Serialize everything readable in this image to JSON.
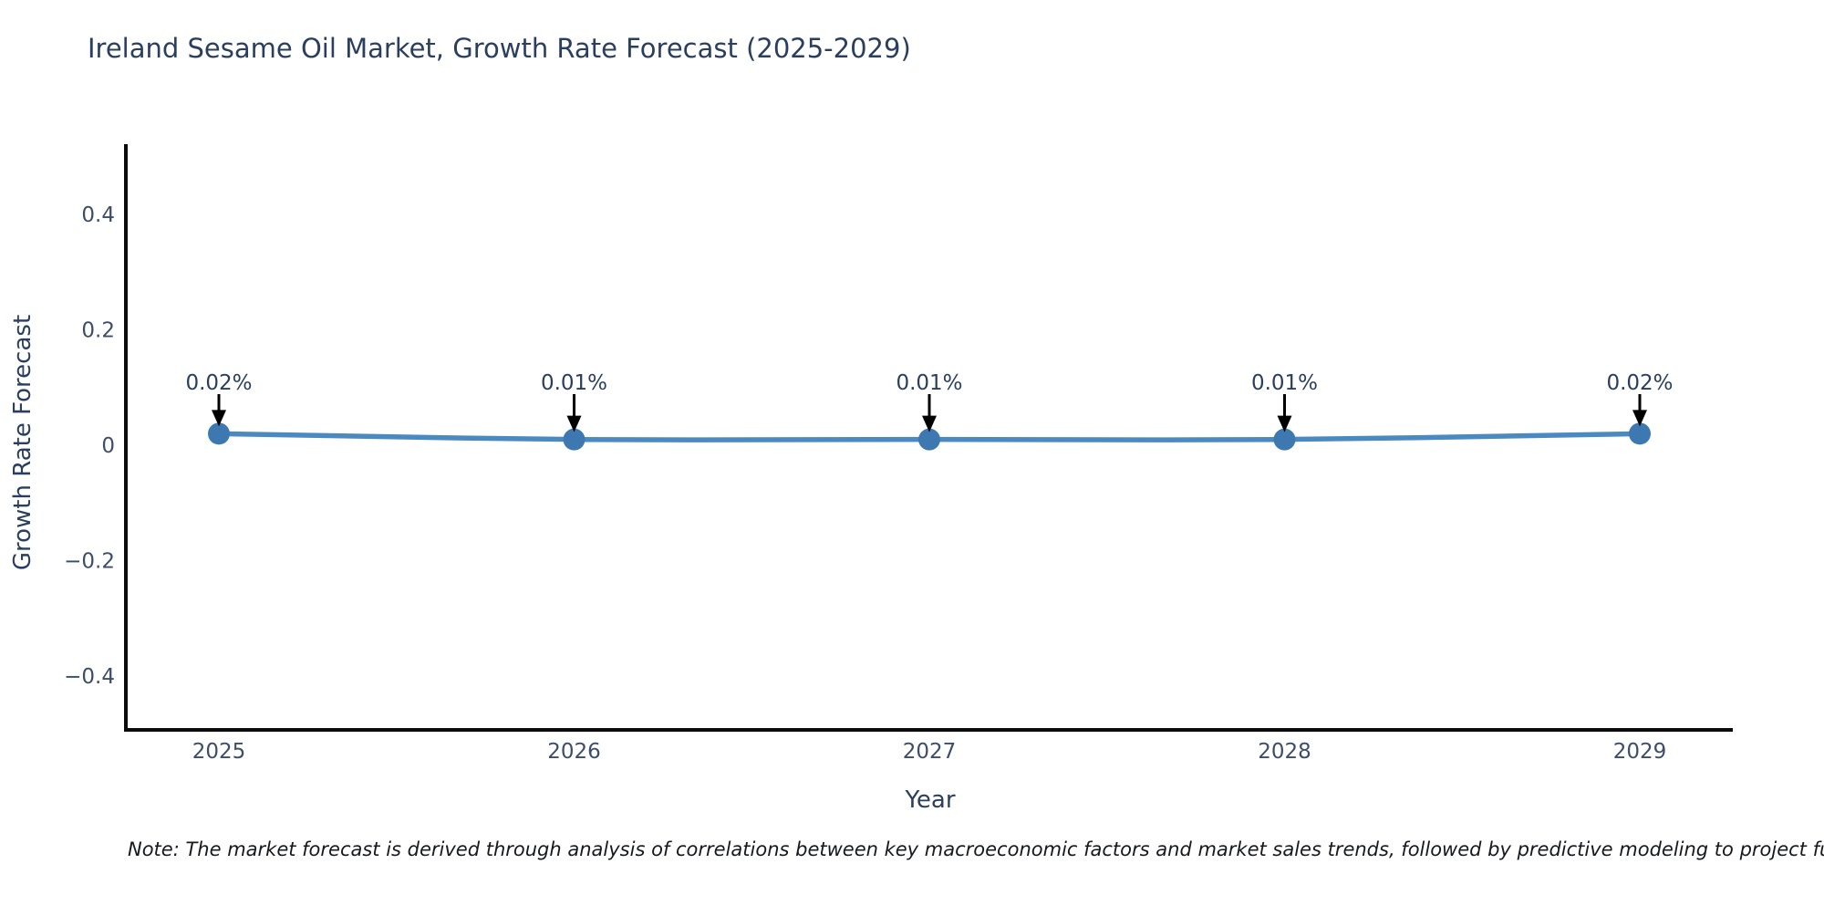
{
  "title": "Ireland Sesame Oil Market, Growth Rate Forecast (2025-2029)",
  "note": "Note: The market forecast is derived through analysis of correlations between key macroeconomic factors and market sales trends, followed by predictive modeling to project future sa",
  "chart_data": {
    "type": "line",
    "title": "Ireland Sesame Oil Market, Growth Rate Forecast (2025-2029)",
    "xlabel": "Year",
    "ylabel": "Growth Rate Forecast",
    "x_categories": [
      "2025",
      "2026",
      "2027",
      "2028",
      "2029"
    ],
    "series": [
      {
        "name": "Growth Rate Forecast",
        "values": [
          0.02,
          0.01,
          0.01,
          0.01,
          0.02
        ]
      }
    ],
    "point_labels": [
      "0.02%",
      "0.01%",
      "0.01%",
      "0.01%",
      "0.02%"
    ],
    "ytick_values": [
      0.4,
      0.2,
      0,
      -0.2,
      -0.4
    ],
    "ytick_labels": [
      "0.4",
      "0.2",
      "0",
      "−0.2",
      "−0.4"
    ],
    "ylim": [
      -0.49,
      0.52
    ],
    "grid": false,
    "legend_position": "none",
    "line_shape": "spline",
    "marker_style": "circle",
    "annotation_arrows": true,
    "colors": {
      "line": "#4a8ac1",
      "marker": "#3d79b0",
      "arrow": "#000000",
      "axis": "#0b0b0b",
      "title_text": "#2a3f5f",
      "tick_text": "#3d4e68",
      "note_text": "#16191f"
    }
  }
}
